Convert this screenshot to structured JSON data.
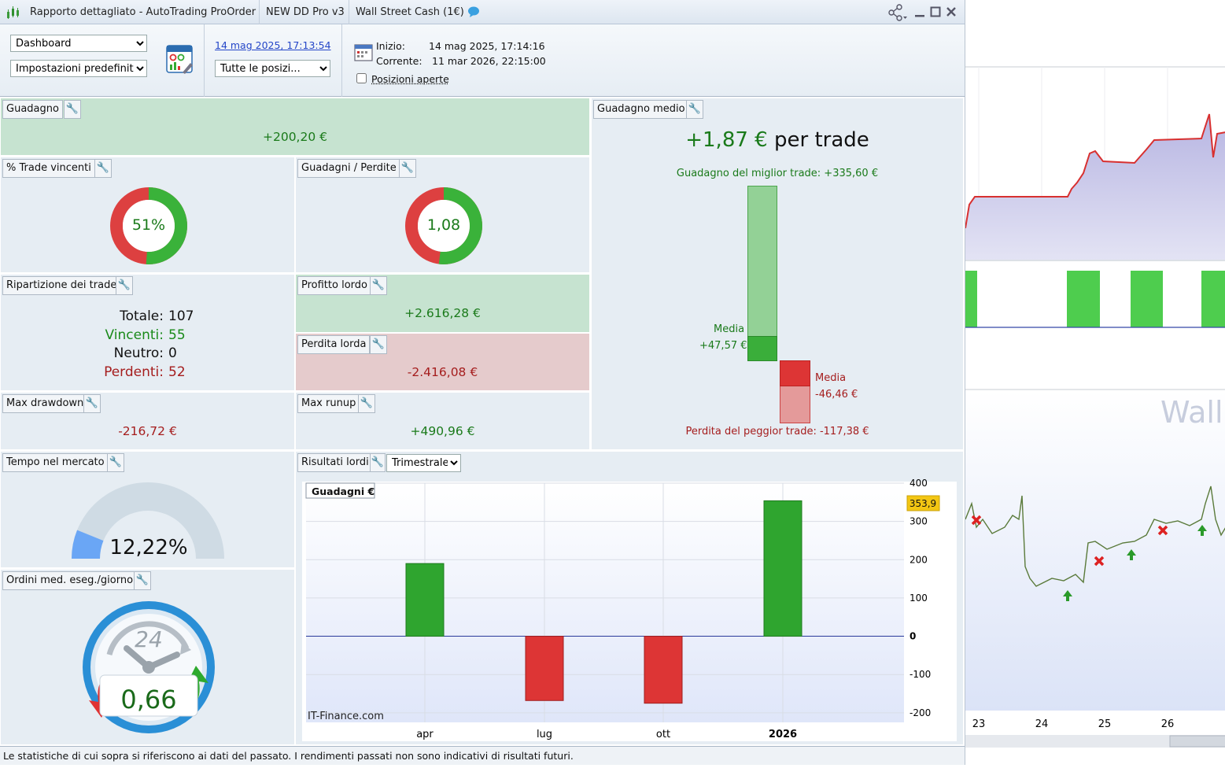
{
  "titlebar": {
    "app_title": "Rapporto dettagliato - AutoTrading ProOrder",
    "strategy": "NEW DD Pro v3",
    "instrument": "Wall Street Cash (1€)"
  },
  "toolbar": {
    "view_select": "Dashboard",
    "settings_select": "Impostazioni predefinite",
    "date_link": "14 mag 2025, 17:13:54",
    "positions_select": "Tutte le posizi...",
    "start_label": "Inizio:",
    "start_value": "14 mag 2025, 17:14:16",
    "current_label": "Corrente:",
    "current_value": "11 mar 2026, 22:15:00",
    "open_positions_label": "Posizioni aperte",
    "open_positions_checked": false
  },
  "panels": {
    "guadagno": {
      "title": "Guadagno",
      "value": "+200,20 €"
    },
    "trade_vincenti": {
      "title": "% Trade vincenti",
      "value": "51%",
      "fraction": 0.51
    },
    "guadagni_perdite": {
      "title": "Guadagni / Perdite",
      "value": "1,08",
      "fraction": 0.52
    },
    "ripartizione": {
      "title": "Ripartizione dei trade",
      "totale_label": "Totale:",
      "totale": "107",
      "vincenti_label": "Vincenti:",
      "vincenti": "55",
      "neutro_label": "Neutro:",
      "neutro": "0",
      "perdenti_label": "Perdenti:",
      "perdenti": "52"
    },
    "profitto_lordo": {
      "title": "Profitto lordo",
      "value": "+2.616,28 €"
    },
    "perdita_lorda": {
      "title": "Perdita lorda",
      "value": "-2.416,08 €"
    },
    "max_drawdown": {
      "title": "Max drawdown",
      "value": "-216,72 €"
    },
    "max_runup": {
      "title": "Max runup",
      "value": "+490,96 €"
    },
    "tempo_mercato": {
      "title": "Tempo nel mercato",
      "value": "12,22%",
      "fraction": 0.1222
    },
    "ordini": {
      "title": "Ordini med. eseg./giorno",
      "value": "0,66",
      "dial_label": "24"
    },
    "guadagno_medio": {
      "title": "Guadagno medio",
      "value": "+1,87 €",
      "suffix": "per trade",
      "best_trade": "Guadagno del miglior trade: +335,60 €",
      "worst_trade": "Perdita del peggior trade: -117,38 €",
      "media_label": "Media",
      "media_win": "+47,57 €",
      "media_loss": "-46,46 €"
    },
    "risultati_lordi": {
      "title": "Risultati lordi",
      "period_select": "Trimestrale"
    }
  },
  "chart_data": {
    "type": "bar",
    "title": "Guadagni €",
    "categories": [
      "apr",
      "lug",
      "ott",
      "2026"
    ],
    "values": [
      190,
      -168,
      -175,
      353.9
    ],
    "ylim": [
      -225,
      400
    ],
    "yticks": [
      400,
      300,
      200,
      100,
      0,
      -100,
      -200
    ],
    "last_value_label": "353,9",
    "watermark": "IT-Finance.com",
    "colors": {
      "positive": "#2fa52f",
      "negative": "#dd3535"
    }
  },
  "right_chart": {
    "x_labels": [
      "23",
      "24",
      "25",
      "26"
    ],
    "watermark": "Wall"
  },
  "footer": {
    "disclaimer": "Le statistiche di cui sopra si riferiscono ai dati del passato. I rendimenti passati non sono indicativi di risultati futuri."
  }
}
